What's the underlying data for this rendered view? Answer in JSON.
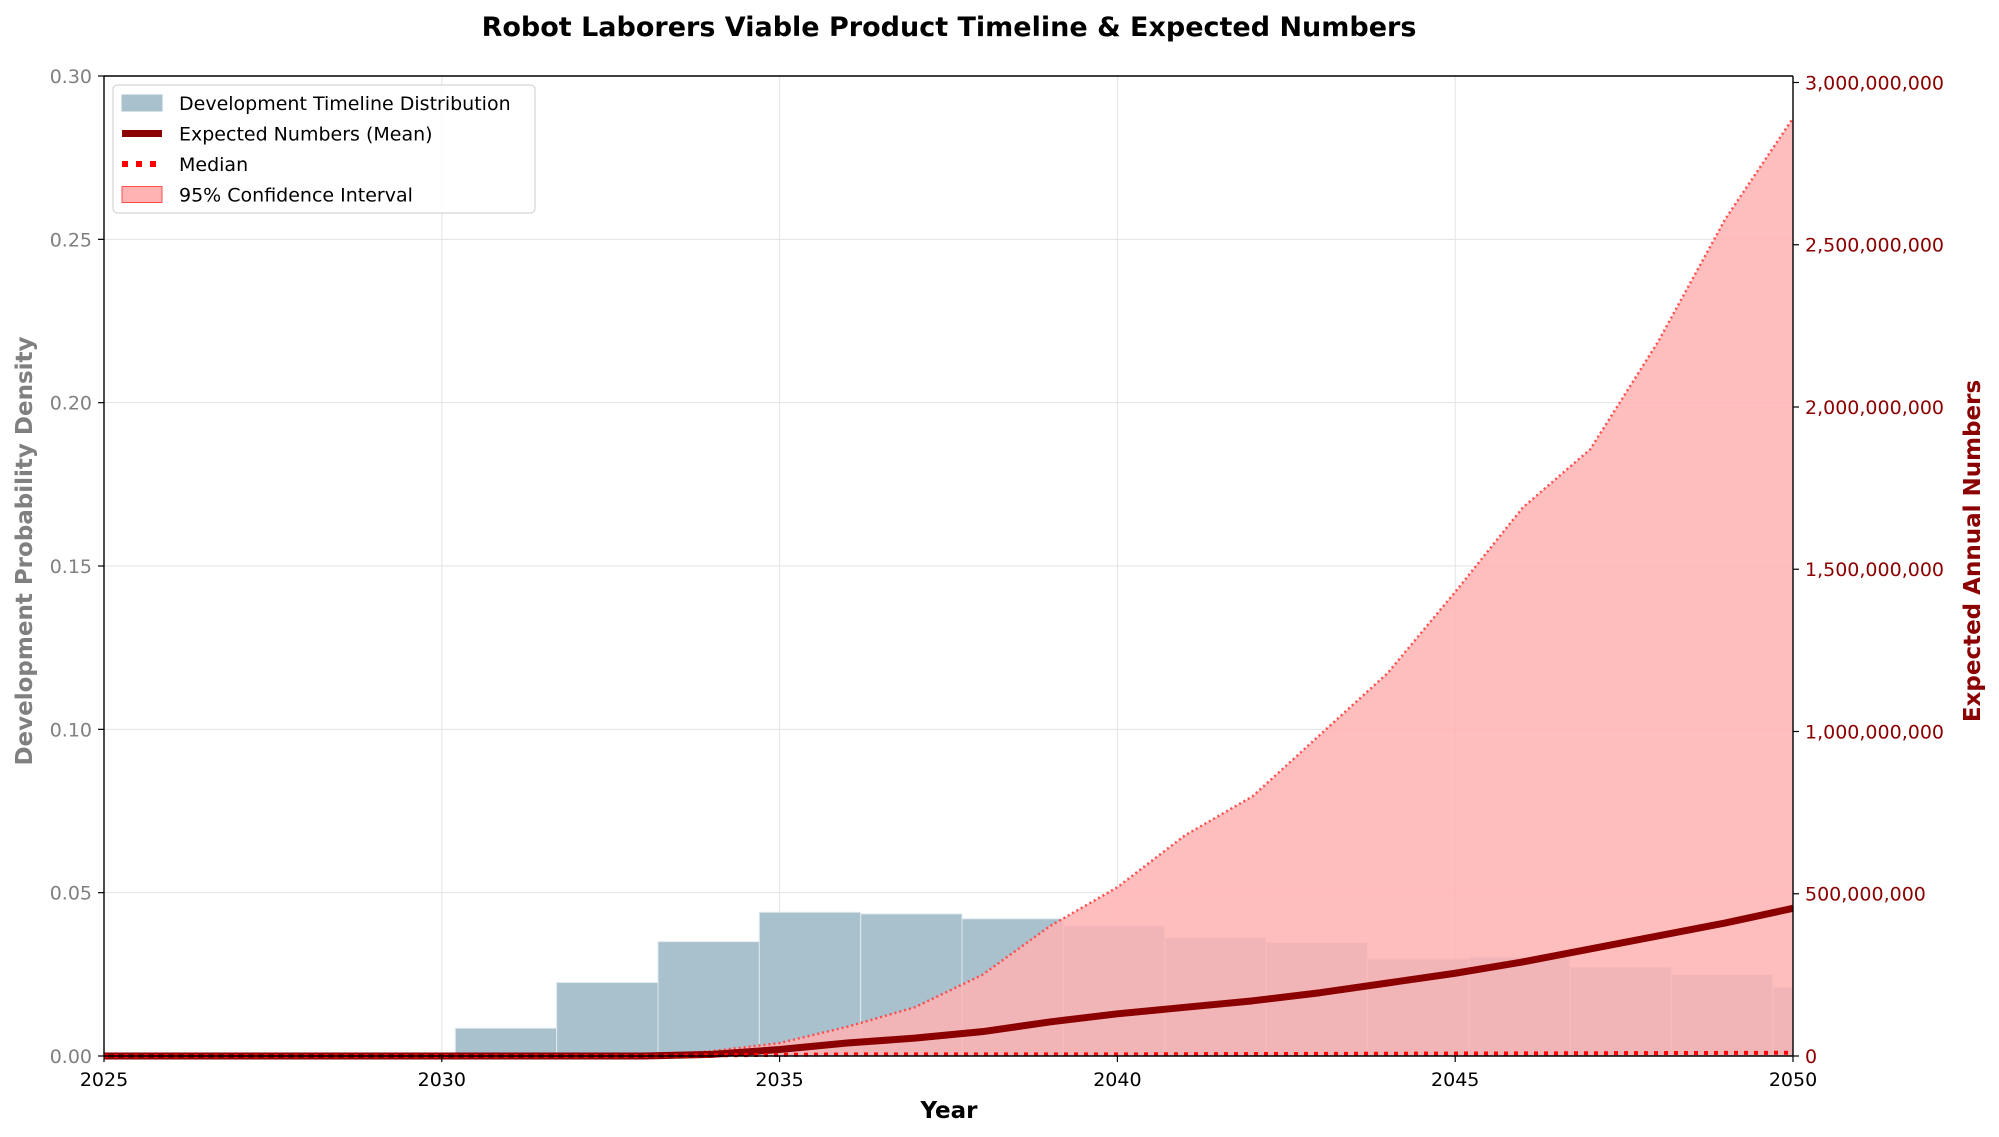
{
  "chart_data": {
    "type": "bar",
    "title": "Robot Laborers Viable Product Timeline & Expected Numbers",
    "xlabel": "Year",
    "ylabel_left": "Development Probability Density",
    "ylabel_right": "Expected Annual Numbers",
    "xlim": [
      2025,
      2050
    ],
    "ylim_left": [
      0,
      0.3
    ],
    "ylim_right": [
      0,
      3020000000
    ],
    "x_ticks": [
      "2025",
      "2030",
      "2035",
      "2040",
      "2045",
      "2050"
    ],
    "left_ticks": [
      "0.00",
      "0.05",
      "0.10",
      "0.15",
      "0.20",
      "0.25",
      "0.30"
    ],
    "right_ticks": [
      "0",
      "500,000,000",
      "1,000,000,000",
      "1,500,000,000",
      "2,000,000,000",
      "2,500,000,000",
      "3,000,000,000"
    ],
    "grid": true,
    "legend_position": "top-left",
    "colors": {
      "histogram": "#a9c0cd",
      "histogram_edge": "#dfe9ee",
      "mean_line": "#8b0000",
      "median": "#ff0000",
      "ci_fill": "#ffb3b3",
      "ci_edge": "#ff4d4d",
      "left_axis": "#808080",
      "right_axis": "#8b0000"
    },
    "histogram": {
      "name": "Development Timeline Distribution",
      "bin_edges": [
        2030.2,
        2031.7,
        2033.2,
        2034.7,
        2036.2,
        2037.7,
        2039.2,
        2040.7,
        2042.2,
        2043.7,
        2045.2,
        2046.7,
        2048.2,
        2049.7
      ],
      "values": [
        0.0085,
        0.0225,
        0.035,
        0.044,
        0.0435,
        0.042,
        0.0398,
        0.0362,
        0.0348,
        0.0297,
        0.0302,
        0.0272,
        0.025,
        0.021
      ]
    },
    "series": [
      {
        "name": "Expected Numbers (Mean)",
        "x": [
          2025,
          2030,
          2033,
          2034,
          2035,
          2036,
          2037,
          2038,
          2039,
          2040,
          2041,
          2042,
          2043,
          2044,
          2045,
          2046,
          2047,
          2048,
          2049,
          2050
        ],
        "values": [
          0,
          0,
          0,
          5000000,
          20000000,
          40000000,
          55000000,
          75000000,
          105000000,
          130000000,
          150000000,
          170000000,
          195000000,
          225000000,
          255000000,
          290000000,
          330000000,
          370000000,
          410000000,
          455000000
        ]
      },
      {
        "name": "Median",
        "x": [
          2025,
          2033,
          2034,
          2036,
          2038,
          2040,
          2042,
          2044,
          2046,
          2048,
          2050
        ],
        "values": [
          0,
          0,
          2000000,
          5000000,
          5000000,
          5000000,
          6000000,
          7000000,
          8000000,
          9000000,
          10000000
        ]
      },
      {
        "name": "95% Confidence Interval",
        "x": [
          2025,
          2033,
          2034,
          2035,
          2036,
          2037,
          2038,
          2039,
          2040,
          2041,
          2042,
          2043,
          2044,
          2045,
          2046,
          2047,
          2048,
          2049,
          2050
        ],
        "upper": [
          0,
          0,
          15000000,
          40000000,
          90000000,
          150000000,
          250000000,
          400000000,
          520000000,
          680000000,
          800000000,
          990000000,
          1180000000,
          1430000000,
          1690000000,
          1870000000,
          2200000000,
          2580000000,
          2890000000
        ],
        "lower": [
          0,
          0,
          0,
          0,
          0,
          0,
          0,
          0,
          0,
          0,
          0,
          0,
          0,
          0,
          0,
          0,
          0,
          0,
          0
        ]
      }
    ]
  }
}
